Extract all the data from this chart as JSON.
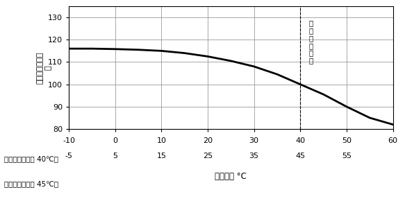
{
  "ylabel": "定格電流補正率\n％",
  "xlabel": "周囲温度 °C",
  "xlim": [
    -10,
    60
  ],
  "ylim": [
    80,
    135
  ],
  "xticks": [
    -10,
    0,
    10,
    20,
    30,
    40,
    50,
    60
  ],
  "yticks": [
    80,
    90,
    100,
    110,
    120,
    130
  ],
  "xtick_labels_row1": [
    "-10",
    "0",
    "10",
    "20",
    "30",
    "40",
    "50",
    "60"
  ],
  "xtick_labels_row2": [
    "-5",
    "5",
    "15",
    "25",
    "35",
    "45",
    "55",
    ""
  ],
  "annotation_vline_x": 40,
  "annotation_text": "基準周囲温度",
  "note_line1": "（基準周囲温度 40℃）",
  "note_line2": "（基準周囲温度 45℃）",
  "curve_x": [
    -10,
    -5,
    0,
    5,
    10,
    15,
    20,
    25,
    30,
    35,
    40,
    45,
    50,
    55,
    60
  ],
  "curve_y": [
    116,
    116,
    115.8,
    115.5,
    115,
    114,
    112.5,
    110.5,
    108,
    104.5,
    100,
    95.5,
    90,
    85,
    82
  ],
  "curve_color": "#000000",
  "curve_linewidth": 2.0,
  "grid_color": "#999999",
  "background_color": "#ffffff"
}
